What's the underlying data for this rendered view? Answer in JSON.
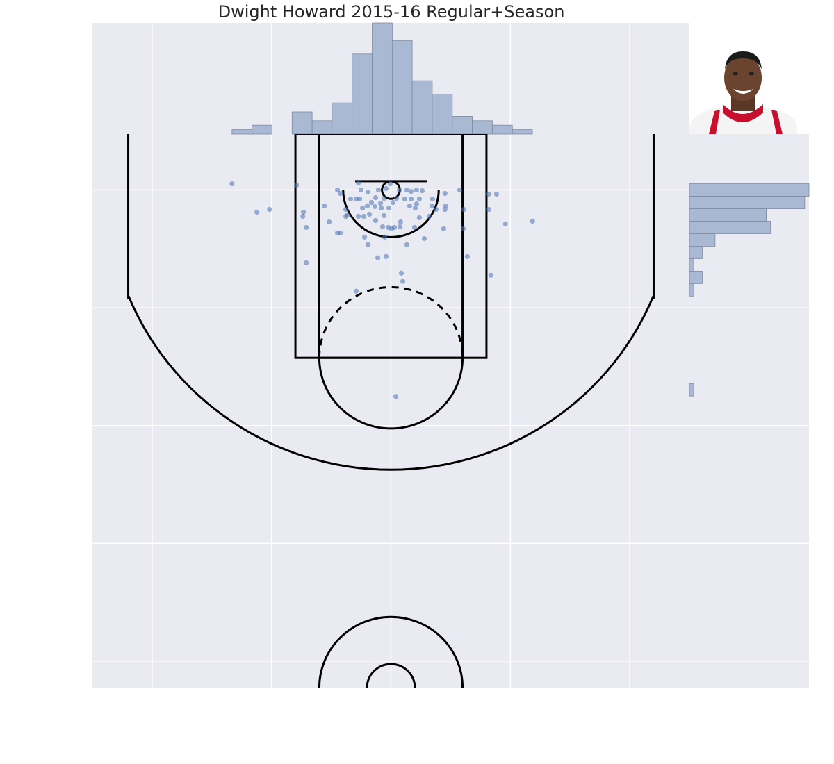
{
  "chart_data": {
    "type": "scatter",
    "title": "Dwight Howard 2015-16 Regular+Season",
    "color": "#4c72b0",
    "xlim": [
      -250,
      250
    ],
    "ylim": [
      422.5,
      -47.5
    ],
    "xticks": [
      -200,
      -100,
      0,
      100,
      200
    ],
    "yticks": [
      0,
      100,
      200,
      300,
      400
    ],
    "grid": true,
    "x": [
      -133.1,
      -79.1,
      -44.8,
      -42.4,
      -27.3,
      -25.0,
      -19.2,
      -10.5,
      -4.1,
      -0.6,
      7.0,
      13.4,
      16.9,
      21.5,
      26.2,
      57.6,
      45.3,
      82.0,
      88.4,
      34.9,
      34.3,
      23.8,
      21.5,
      16.9,
      11.6,
      4.7,
      1.7,
      -5.8,
      -12.8,
      -16.3,
      -19.8,
      -26.2,
      -29.1,
      -33.7,
      -37.8,
      -55.8,
      -73.3,
      -73.8,
      -101.7,
      -112.2,
      -51.7,
      -42.4,
      -44.8,
      -37.8,
      -27.3,
      -22.7,
      -18.0,
      -13.4,
      -8.1,
      -5.8,
      -12.8,
      -7.0,
      -2.3,
      2.9,
      8.1,
      7.6,
      0.6,
      19.8,
      23.8,
      32.0,
      45.9,
      45.3,
      61.0,
      82.0,
      37.8,
      60.5,
      44.2,
      95.9,
      118.6,
      -70.9,
      -36.6,
      -19.2,
      -5.2,
      13.4,
      27.9,
      -22.1,
      -11.0,
      -4.1,
      64.0,
      -70.9,
      8.7,
      9.9,
      -29.1,
      83.7,
      4.1,
      20.3,
      15.7,
      -23.8,
      -8.7,
      -1.7
    ],
    "y": [
      -5.3,
      -4.1,
      0,
      2.9,
      -5.9,
      0,
      1.8,
      0,
      -1.2,
      -5.3,
      0,
      0,
      1.2,
      0,
      0.6,
      0,
      2.9,
      3.5,
      3.5,
      7.6,
      13.5,
      7.6,
      11.8,
      7.6,
      7.6,
      7.1,
      10.6,
      7.1,
      6.5,
      10.6,
      13.5,
      7.6,
      7.6,
      7.6,
      16.5,
      13.5,
      18.8,
      22.4,
      16.5,
      18.8,
      27.1,
      36.5,
      36.5,
      22.4,
      22.4,
      22.4,
      20.6,
      14.1,
      15.3,
      21.8,
      25.9,
      31.2,
      31.8,
      31.8,
      27.1,
      31.2,
      32.9,
      31.8,
      23.5,
      22.4,
      13.5,
      16.5,
      16.5,
      16.5,
      16.5,
      32.9,
      32.9,
      28.8,
      26.5,
      31.8,
      21.2,
      46.5,
      40.0,
      46.5,
      41.2,
      40.0,
      57.6,
      56.5,
      56.5,
      61.8,
      70.6,
      77.6,
      85.9,
      72.4,
      175.3,
      15.3,
      13.5,
      15.3,
      11.2,
      15.3
    ],
    "top_hist": {
      "color": "#a9b8d3",
      "bins": [
        -133.1,
        -116.3,
        -99.6,
        -82.8,
        -66.0,
        -49.3,
        -32.5,
        -15.7,
        1.1,
        17.8,
        34.6,
        51.4,
        68.1,
        84.9,
        101.7,
        118.5
      ],
      "counts": [
        1,
        2,
        0,
        5,
        3,
        7,
        18,
        25,
        21,
        12,
        9,
        4,
        3,
        2,
        1
      ],
      "ylim": [
        0,
        25
      ]
    },
    "right_hist": {
      "color": "#a9b8d3",
      "bins": [
        -5.3,
        5.3,
        15.9,
        26.5,
        37.1,
        47.7,
        58.3,
        68.9,
        79.5,
        90.1,
        100.7,
        111.3,
        121.9,
        132.5,
        143.1,
        153.7,
        164.3,
        174.9
      ],
      "counts": [
        28,
        27,
        18,
        19,
        6,
        3,
        1,
        3,
        1,
        0,
        0,
        0,
        0,
        0,
        0,
        0,
        1
      ],
      "xlim": [
        0,
        28
      ]
    }
  }
}
